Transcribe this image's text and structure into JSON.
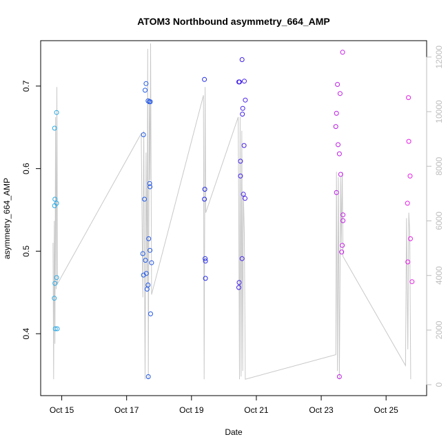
{
  "chart_data": {
    "type": "scatter",
    "title": "ATOM3 Northbound asymmetry_664_AMP",
    "xlabel": "Date",
    "ylabel": "asymmetry_664_AMP",
    "x_ticks": [
      "Oct 15",
      "Oct 17",
      "Oct 19",
      "Oct 21",
      "Oct 23",
      "Oct 25"
    ],
    "x_tick_days": [
      15,
      17,
      19,
      21,
      23,
      25
    ],
    "xlim": [
      14.35,
      26.25
    ],
    "ylim": [
      0.325,
      0.755
    ],
    "y_ticks": [
      0.4,
      0.5,
      0.6,
      0.7
    ],
    "y2_ticks": [
      0,
      2000,
      4000,
      6000,
      8000,
      10000,
      12000
    ],
    "y2lim": [
      -400,
      12600
    ],
    "colors": {
      "overlay": "#c8c8c8",
      "color_start": "#29b6e6",
      "color_mid": "#1e1ee6",
      "color_end": "#e61ee6"
    },
    "points": [
      {
        "x": 14.78,
        "y": 0.649
      },
      {
        "x": 14.79,
        "y": 0.563
      },
      {
        "x": 14.78,
        "y": 0.555
      },
      {
        "x": 14.77,
        "y": 0.443
      },
      {
        "x": 14.8,
        "y": 0.406
      },
      {
        "x": 14.79,
        "y": 0.461
      },
      {
        "x": 14.84,
        "y": 0.668
      },
      {
        "x": 14.84,
        "y": 0.558
      },
      {
        "x": 14.84,
        "y": 0.468
      },
      {
        "x": 14.86,
        "y": 0.406
      },
      {
        "x": 17.52,
        "y": 0.641
      },
      {
        "x": 17.5,
        "y": 0.497
      },
      {
        "x": 17.52,
        "y": 0.471
      },
      {
        "x": 17.55,
        "y": 0.563
      },
      {
        "x": 17.57,
        "y": 0.695
      },
      {
        "x": 17.6,
        "y": 0.703
      },
      {
        "x": 17.58,
        "y": 0.489
      },
      {
        "x": 17.61,
        "y": 0.473
      },
      {
        "x": 17.63,
        "y": 0.454
      },
      {
        "x": 17.66,
        "y": 0.682
      },
      {
        "x": 17.68,
        "y": 0.515
      },
      {
        "x": 17.66,
        "y": 0.459
      },
      {
        "x": 17.7,
        "y": 0.681
      },
      {
        "x": 17.73,
        "y": 0.681
      },
      {
        "x": 17.71,
        "y": 0.582
      },
      {
        "x": 17.72,
        "y": 0.578
      },
      {
        "x": 17.72,
        "y": 0.501
      },
      {
        "x": 17.77,
        "y": 0.486
      },
      {
        "x": 17.74,
        "y": 0.424
      },
      {
        "x": 17.67,
        "y": 0.348
      },
      {
        "x": 19.4,
        "y": 0.708
      },
      {
        "x": 19.41,
        "y": 0.575
      },
      {
        "x": 19.4,
        "y": 0.563
      },
      {
        "x": 19.42,
        "y": 0.491
      },
      {
        "x": 19.43,
        "y": 0.488
      },
      {
        "x": 19.43,
        "y": 0.467
      },
      {
        "x": 20.46,
        "y": 0.705
      },
      {
        "x": 20.48,
        "y": 0.705
      },
      {
        "x": 20.56,
        "y": 0.732
      },
      {
        "x": 20.63,
        "y": 0.706
      },
      {
        "x": 20.66,
        "y": 0.683
      },
      {
        "x": 20.58,
        "y": 0.673
      },
      {
        "x": 20.57,
        "y": 0.666
      },
      {
        "x": 20.62,
        "y": 0.628
      },
      {
        "x": 20.51,
        "y": 0.609
      },
      {
        "x": 20.51,
        "y": 0.591
      },
      {
        "x": 20.6,
        "y": 0.569
      },
      {
        "x": 20.65,
        "y": 0.564
      },
      {
        "x": 20.56,
        "y": 0.491
      },
      {
        "x": 20.47,
        "y": 0.462
      },
      {
        "x": 20.46,
        "y": 0.456
      },
      {
        "x": 23.47,
        "y": 0.667
      },
      {
        "x": 23.5,
        "y": 0.702
      },
      {
        "x": 23.45,
        "y": 0.651
      },
      {
        "x": 23.58,
        "y": 0.691
      },
      {
        "x": 23.52,
        "y": 0.629
      },
      {
        "x": 23.56,
        "y": 0.618
      },
      {
        "x": 23.6,
        "y": 0.593
      },
      {
        "x": 23.47,
        "y": 0.571
      },
      {
        "x": 23.67,
        "y": 0.544
      },
      {
        "x": 23.67,
        "y": 0.537
      },
      {
        "x": 23.65,
        "y": 0.507
      },
      {
        "x": 23.63,
        "y": 0.499
      },
      {
        "x": 23.66,
        "y": 0.741
      },
      {
        "x": 23.56,
        "y": 0.348
      },
      {
        "x": 25.69,
        "y": 0.686
      },
      {
        "x": 25.7,
        "y": 0.633
      },
      {
        "x": 25.74,
        "y": 0.591
      },
      {
        "x": 25.66,
        "y": 0.558
      },
      {
        "x": 25.75,
        "y": 0.515
      },
      {
        "x": 25.67,
        "y": 0.487
      },
      {
        "x": 25.8,
        "y": 0.463
      }
    ],
    "overlay_line": [
      {
        "x": 14.73,
        "y2": 5200
      },
      {
        "x": 14.75,
        "y2": 200
      },
      {
        "x": 14.77,
        "y2": 6000
      },
      {
        "x": 14.79,
        "y2": 1500
      },
      {
        "x": 14.81,
        "y2": 9800
      },
      {
        "x": 14.83,
        "y2": 3500
      },
      {
        "x": 14.85,
        "y2": 10900
      },
      {
        "x": 14.87,
        "y2": 3700
      },
      {
        "x": 17.45,
        "y2": 9200
      },
      {
        "x": 17.5,
        "y2": 3200
      },
      {
        "x": 17.53,
        "y2": 9300
      },
      {
        "x": 17.57,
        "y2": 200
      },
      {
        "x": 17.6,
        "y2": 8500
      },
      {
        "x": 17.63,
        "y2": 3500
      },
      {
        "x": 17.65,
        "y2": 12300
      },
      {
        "x": 17.67,
        "y2": 200
      },
      {
        "x": 17.7,
        "y2": 10500
      },
      {
        "x": 17.72,
        "y2": 7500
      },
      {
        "x": 17.74,
        "y2": 12500
      },
      {
        "x": 17.77,
        "y2": 3300
      },
      {
        "x": 19.37,
        "y2": 10600
      },
      {
        "x": 19.39,
        "y2": 200
      },
      {
        "x": 19.42,
        "y2": 10900
      },
      {
        "x": 19.44,
        "y2": 6300
      },
      {
        "x": 20.44,
        "y2": 9800
      },
      {
        "x": 20.46,
        "y2": 5800
      },
      {
        "x": 20.48,
        "y2": 200
      },
      {
        "x": 20.5,
        "y2": 9800
      },
      {
        "x": 20.53,
        "y2": 300
      },
      {
        "x": 20.55,
        "y2": 9300
      },
      {
        "x": 20.58,
        "y2": 500
      },
      {
        "x": 20.6,
        "y2": 7000
      },
      {
        "x": 20.63,
        "y2": 5500
      },
      {
        "x": 20.66,
        "y2": 200
      },
      {
        "x": 23.45,
        "y2": 1100
      },
      {
        "x": 23.47,
        "y2": 7800
      },
      {
        "x": 23.5,
        "y2": 500
      },
      {
        "x": 23.53,
        "y2": 7600
      },
      {
        "x": 23.56,
        "y2": 200
      },
      {
        "x": 23.6,
        "y2": 7600
      },
      {
        "x": 23.62,
        "y2": 5200
      },
      {
        "x": 23.65,
        "y2": 7800
      },
      {
        "x": 23.67,
        "y2": 4700
      },
      {
        "x": 25.6,
        "y2": 700
      },
      {
        "x": 25.63,
        "y2": 6100
      },
      {
        "x": 25.67,
        "y2": 1300
      },
      {
        "x": 25.7,
        "y2": 6300
      },
      {
        "x": 25.73,
        "y2": 5600
      },
      {
        "x": 25.76,
        "y2": 200
      }
    ]
  }
}
